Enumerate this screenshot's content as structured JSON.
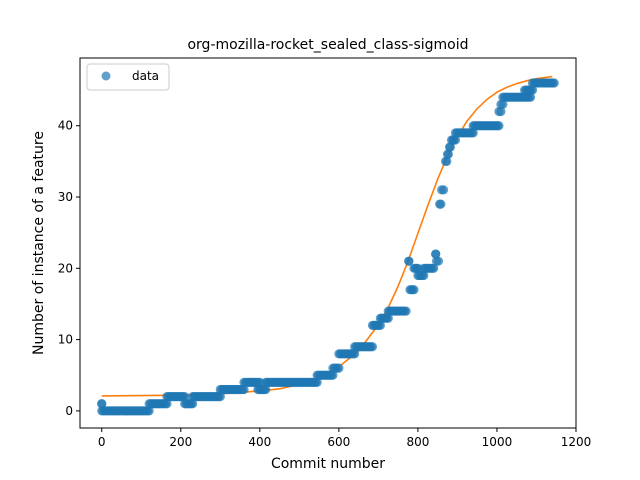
{
  "chart_data": {
    "type": "scatter",
    "title": "org-mozilla-rocket_sealed_class-sigmoid",
    "xlabel": "Commit number",
    "ylabel": "Number of instance of a feature",
    "xlim": [
      -55,
      1200
    ],
    "ylim": [
      -2.4,
      49.5
    ],
    "xticks": [
      0,
      200,
      400,
      600,
      800,
      1000,
      1200
    ],
    "yticks": [
      0,
      10,
      20,
      30,
      40
    ],
    "grid": false,
    "legend": {
      "placement": "top-left",
      "entries": [
        "data"
      ]
    },
    "colors": {
      "data": "#1f77b4",
      "fit": "#ff7f0e"
    },
    "series": [
      {
        "name": "data",
        "style": "points",
        "segments": [
          {
            "x_start": 0,
            "x_end": 0,
            "y": 1
          },
          {
            "x_start": 0,
            "x_end": 120,
            "y": 0
          },
          {
            "x_start": 120,
            "x_end": 165,
            "y": 1
          },
          {
            "x_start": 165,
            "x_end": 210,
            "y": 2
          },
          {
            "x_start": 210,
            "x_end": 230,
            "y": 1
          },
          {
            "x_start": 230,
            "x_end": 300,
            "y": 2
          },
          {
            "x_start": 300,
            "x_end": 360,
            "y": 3
          },
          {
            "x_start": 360,
            "x_end": 400,
            "y": 4
          },
          {
            "x_start": 395,
            "x_end": 415,
            "y": 3
          },
          {
            "x_start": 415,
            "x_end": 545,
            "y": 4
          },
          {
            "x_start": 545,
            "x_end": 585,
            "y": 5
          },
          {
            "x_start": 585,
            "x_end": 600,
            "y": 6
          },
          {
            "x_start": 600,
            "x_end": 640,
            "y": 8
          },
          {
            "x_start": 640,
            "x_end": 685,
            "y": 9
          },
          {
            "x_start": 685,
            "x_end": 705,
            "y": 12
          },
          {
            "x_start": 705,
            "x_end": 725,
            "y": 13
          },
          {
            "x_start": 725,
            "x_end": 770,
            "y": 14
          },
          {
            "x_start": 777,
            "x_end": 777,
            "y": 21
          },
          {
            "x_start": 780,
            "x_end": 790,
            "y": 17
          },
          {
            "x_start": 790,
            "x_end": 800,
            "y": 20
          },
          {
            "x_start": 800,
            "x_end": 815,
            "y": 19
          },
          {
            "x_start": 815,
            "x_end": 840,
            "y": 20
          },
          {
            "x_start": 845,
            "x_end": 845,
            "y": 22
          },
          {
            "x_start": 847,
            "x_end": 852,
            "y": 21
          },
          {
            "x_start": 855,
            "x_end": 858,
            "y": 29
          },
          {
            "x_start": 860,
            "x_end": 865,
            "y": 31
          },
          {
            "x_start": 870,
            "x_end": 873,
            "y": 35
          },
          {
            "x_start": 875,
            "x_end": 877,
            "y": 36
          },
          {
            "x_start": 880,
            "x_end": 882,
            "y": 37
          },
          {
            "x_start": 885,
            "x_end": 895,
            "y": 38
          },
          {
            "x_start": 895,
            "x_end": 940,
            "y": 39
          },
          {
            "x_start": 940,
            "x_end": 1005,
            "y": 40
          },
          {
            "x_start": 1005,
            "x_end": 1010,
            "y": 42
          },
          {
            "x_start": 1010,
            "x_end": 1015,
            "y": 43
          },
          {
            "x_start": 1015,
            "x_end": 1085,
            "y": 44
          },
          {
            "x_start": 1070,
            "x_end": 1090,
            "y": 45
          },
          {
            "x_start": 1090,
            "x_end": 1145,
            "y": 46
          }
        ]
      },
      {
        "name": "",
        "style": "line",
        "x": [
          0,
          200,
          300,
          400,
          450,
          500,
          550,
          600,
          650,
          700,
          725,
          750,
          775,
          800,
          825,
          850,
          875,
          900,
          925,
          950,
          975,
          1000,
          1025,
          1050,
          1075,
          1100,
          1140
        ],
        "y": [
          2.1,
          2.2,
          2.4,
          2.8,
          3.1,
          3.7,
          4.6,
          6.2,
          8.4,
          12.1,
          14.5,
          17.5,
          21.0,
          24.9,
          28.8,
          32.5,
          35.8,
          38.5,
          40.7,
          42.4,
          43.7,
          44.7,
          45.4,
          45.9,
          46.3,
          46.6,
          46.9
        ]
      }
    ]
  }
}
